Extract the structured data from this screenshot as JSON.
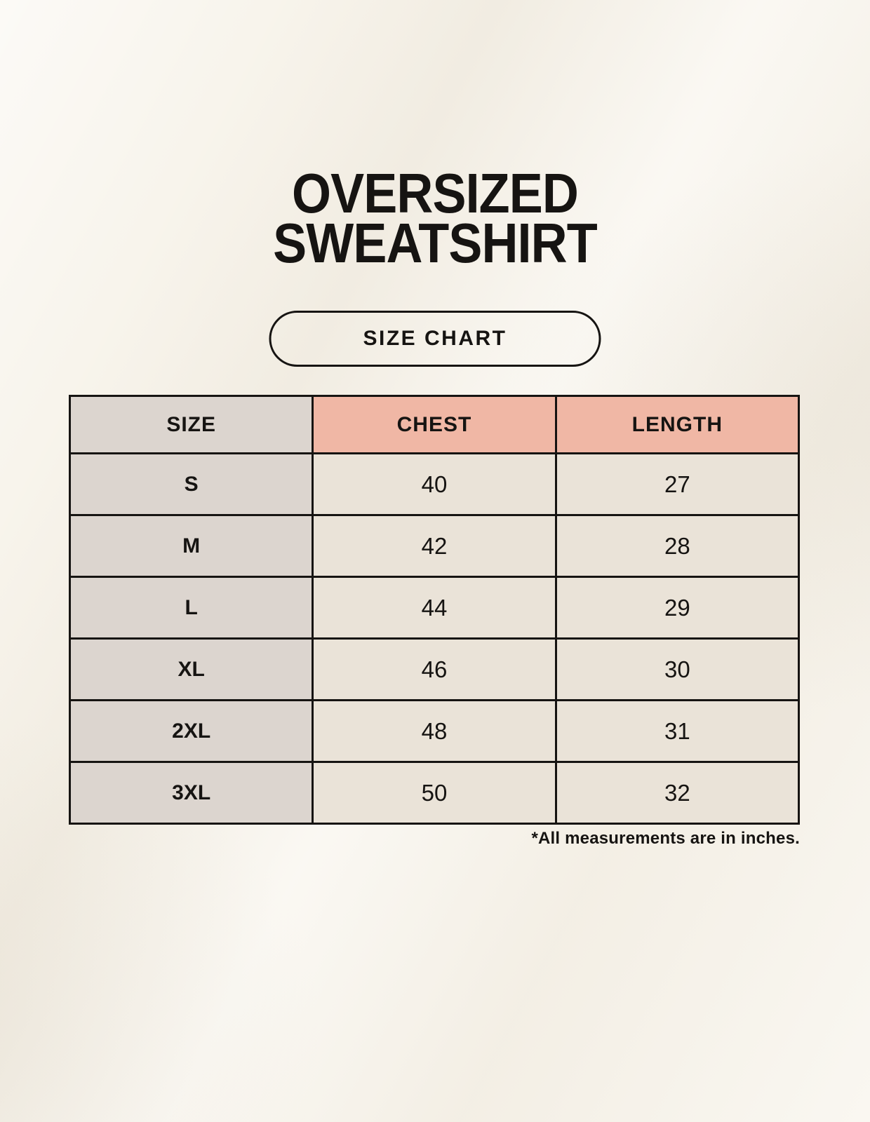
{
  "page": {
    "title_line1": "OVERSIZED",
    "title_line2": "SWEATSHIRT",
    "badge_label": "SIZE CHART",
    "footnote": "*All measurements are in inches."
  },
  "colors": {
    "background": "#f7f3ea",
    "header_accent": "#f0b7a5",
    "row_label_bg": "#dcd5cf",
    "cell_bg": "#eae3d8",
    "border": "#161412",
    "text": "#161412"
  },
  "table": {
    "columns": [
      "SIZE",
      "CHEST",
      "LENGTH"
    ],
    "rows": [
      {
        "size": "S",
        "chest": "40",
        "length": "27"
      },
      {
        "size": "M",
        "chest": "42",
        "length": "28"
      },
      {
        "size": "L",
        "chest": "44",
        "length": "29"
      },
      {
        "size": "XL",
        "chest": "46",
        "length": "30"
      },
      {
        "size": "2XL",
        "chest": "48",
        "length": "31"
      },
      {
        "size": "3XL",
        "chest": "50",
        "length": "32"
      }
    ],
    "units_note": "inches"
  }
}
